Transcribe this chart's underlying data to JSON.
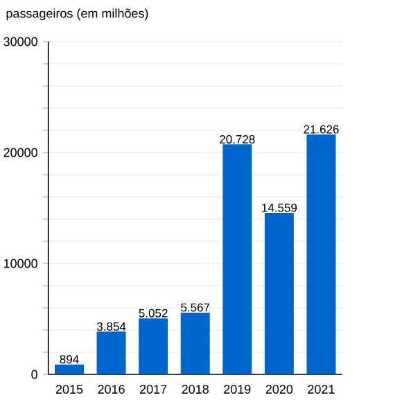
{
  "chart_data": {
    "type": "bar",
    "title": "passageiros (em milhões)",
    "categories": [
      "2015",
      "2016",
      "2017",
      "2018",
      "2019",
      "2020",
      "2021"
    ],
    "values": [
      894,
      3854,
      5052,
      5567,
      20728,
      14559,
      21626
    ],
    "value_labels": [
      "894",
      "3.854",
      "5.052",
      "5.567",
      "20.728",
      "14.559",
      "21.626"
    ],
    "color": "#0066cc",
    "ylim": [
      0,
      30000
    ],
    "yticks": [
      0,
      {
        "value": 2000,
        "label": null
      },
      {
        "value": 4000,
        "label": null
      },
      {
        "value": 6000,
        "label": null
      },
      {
        "value": 8000,
        "label": null
      },
      10000,
      {
        "value": 12000,
        "label": null
      },
      {
        "value": 14000,
        "label": null
      },
      {
        "value": 16000,
        "label": null
      },
      {
        "value": 18000,
        "label": null
      },
      20000,
      {
        "value": 22000,
        "label": null
      },
      {
        "value": 24000,
        "label": null
      },
      {
        "value": 26000,
        "label": null
      },
      {
        "value": 28000,
        "label": null
      },
      30000
    ],
    "grid": "y"
  }
}
